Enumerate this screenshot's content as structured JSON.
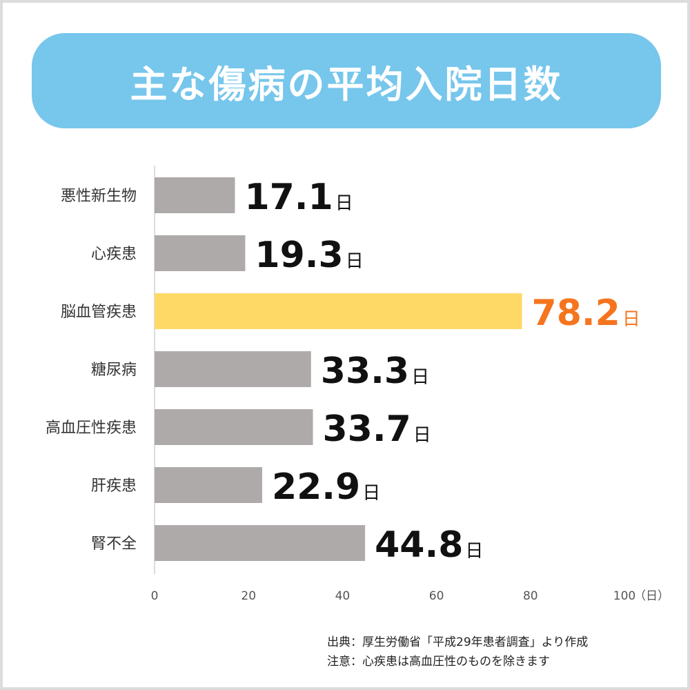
{
  "chart_data": {
    "type": "bar",
    "orientation": "horizontal",
    "title": "主な傷病の平均入院日数",
    "categories": [
      "悪性新生物",
      "心疾患",
      "脳血管疾患",
      "糖尿病",
      "高血圧性疾患",
      "肝疾患",
      "腎不全"
    ],
    "values": [
      17.1,
      19.3,
      78.2,
      33.3,
      33.7,
      22.9,
      44.8
    ],
    "value_labels": [
      "17.1",
      "19.3",
      "78.2",
      "33.3",
      "33.7",
      "22.9",
      "44.8"
    ],
    "value_unit": "日",
    "highlight_index": 2,
    "xlim": [
      0,
      100
    ],
    "xticks": [
      "0",
      "20",
      "40",
      "60",
      "80",
      "100"
    ],
    "xunit": "（日）",
    "grid": false
  },
  "colors": {
    "banner": "#77c6ec",
    "bar": "#aeaaa9",
    "highlight_bar": "#ffd966",
    "highlight_text": "#f5751f",
    "text": "#111111"
  },
  "notes": {
    "source": "出典：厚生労働省「平成29年患者調査」より作成",
    "caution": "注意：心疾患は高血圧性のものを除きます"
  }
}
